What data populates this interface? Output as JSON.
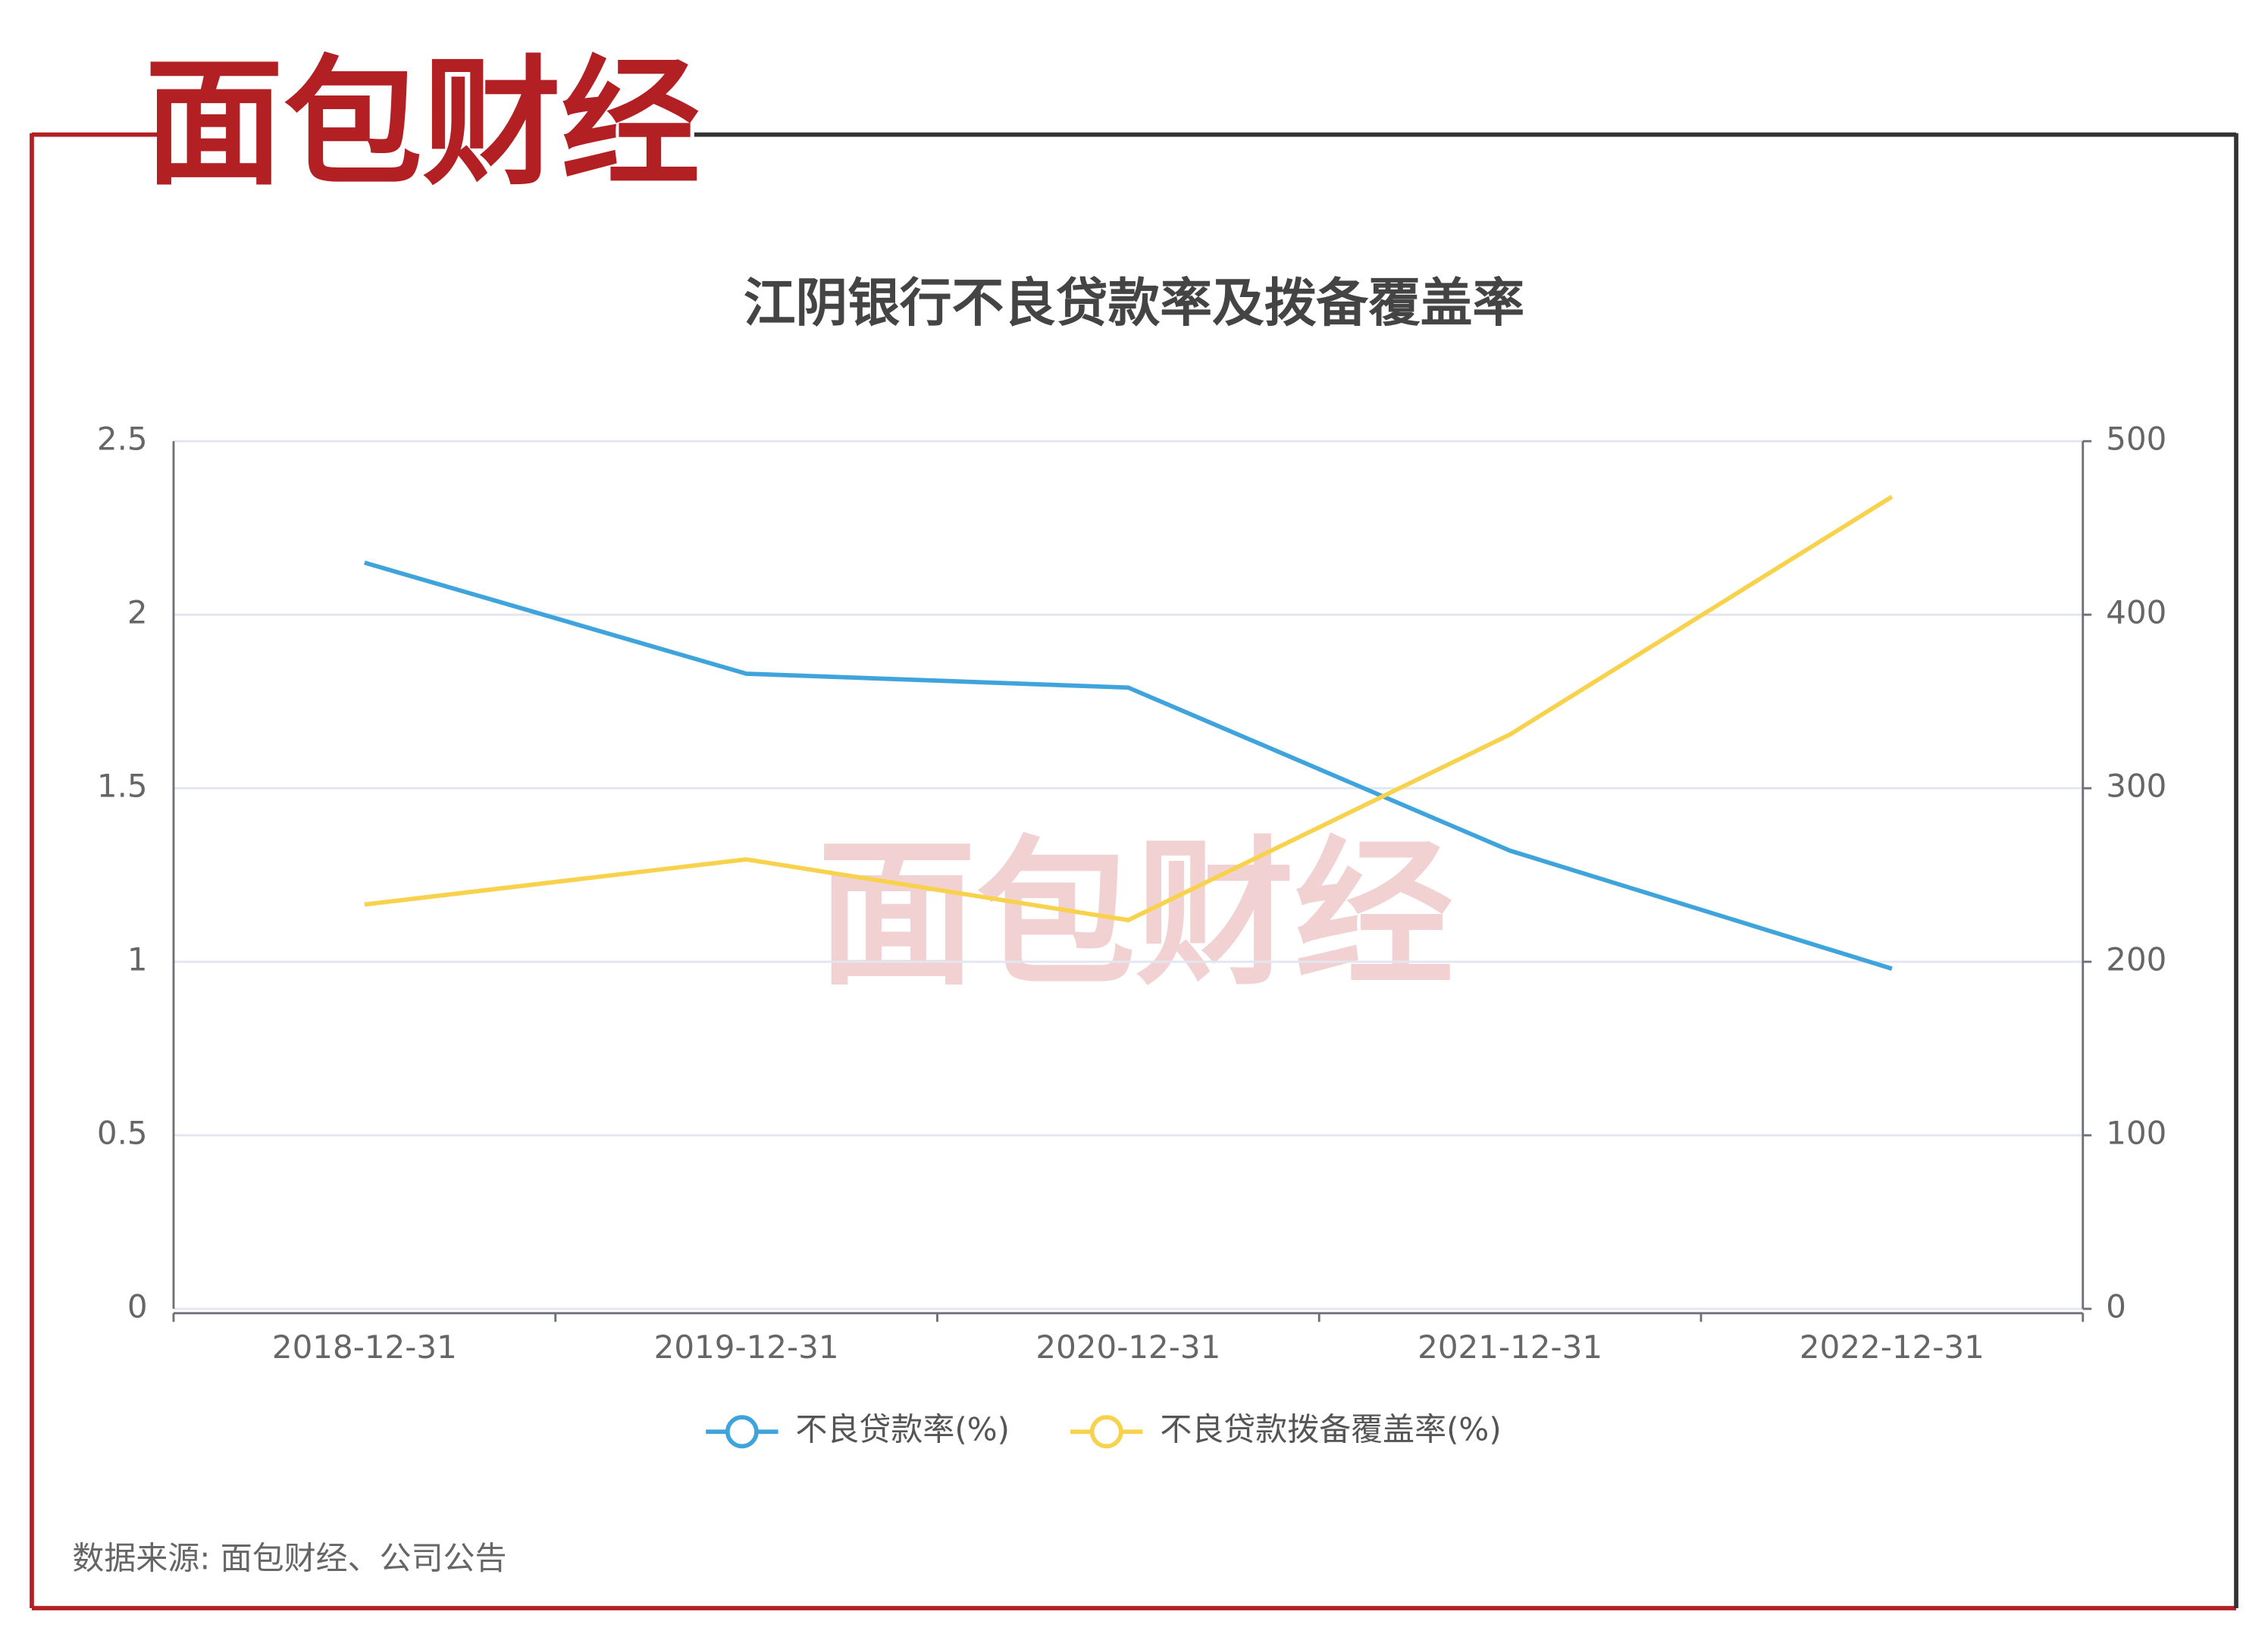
{
  "logo": "面包财经",
  "chart_data": {
    "type": "line",
    "title": "江阴银行不良贷款率及拨备覆盖率",
    "categories": [
      "2018-12-31",
      "2019-12-31",
      "2020-12-31",
      "2021-12-31",
      "2022-12-31"
    ],
    "series": [
      {
        "name": "不良贷款率(%)",
        "color": "#3fa4dc",
        "values": [
          2.15,
          1.83,
          1.79,
          1.32,
          0.98
        ]
      },
      {
        "name": "不良贷款拨备覆盖率(%)",
        "color": "#f8d24c",
        "axis": "y2",
        "values": [
          233,
          259,
          224,
          331,
          468
        ]
      }
    ],
    "ylim": [
      0,
      2.5
    ],
    "yticks": [
      0,
      0.5,
      1,
      1.5,
      2,
      2.5
    ],
    "y2lim": [
      0,
      500
    ],
    "y2ticks": [
      0,
      100,
      200,
      300,
      400,
      500
    ],
    "grid": true,
    "legend": "bottom",
    "source": "数据来源: 面包财经、公司公告"
  }
}
